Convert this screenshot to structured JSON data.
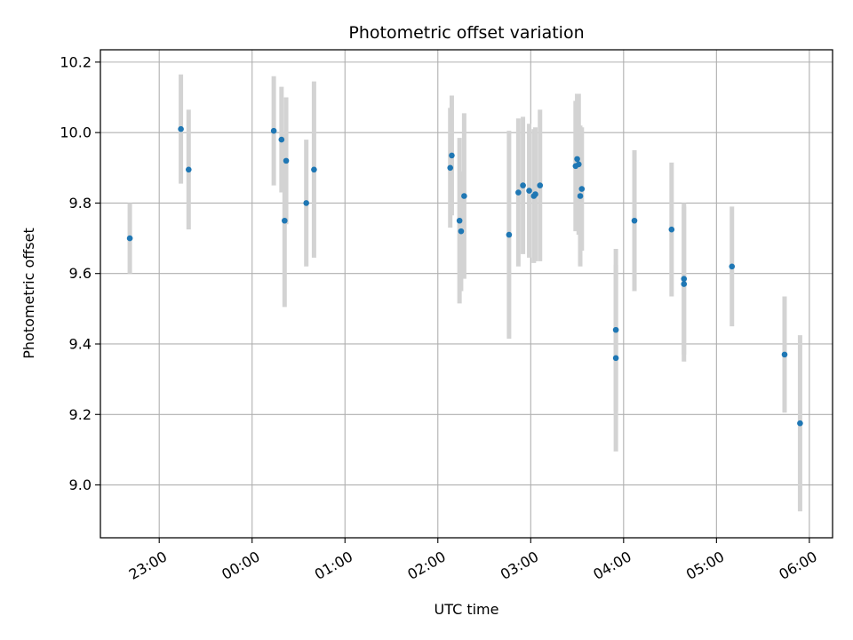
{
  "chart_data": {
    "type": "scatter",
    "title": "Photometric offset variation",
    "xlabel": "UTC time",
    "ylabel": "Photometric offset",
    "grid": true,
    "legend": "none",
    "x_unit": "UTC time (HH:MM, 22:00 to 06:00)",
    "xlim": [
      "22:22",
      "06:15"
    ],
    "ylim": [
      8.85,
      10.235
    ],
    "x_ticks": [
      "23:00",
      "00:00",
      "01:00",
      "02:00",
      "03:00",
      "04:00",
      "05:00",
      "06:00"
    ],
    "y_ticks": [
      9.0,
      9.2,
      9.4,
      9.6,
      9.8,
      10.0,
      10.2
    ],
    "y_tick_labels": [
      "9.0",
      "9.2",
      "9.4",
      "9.6",
      "9.8",
      "10.0",
      "10.2"
    ],
    "colors": {
      "point": "#1f77b4",
      "errorbar": "#d3d3d3",
      "grid": "#b0b0b0"
    },
    "points": [
      {
        "x": "22:41",
        "y": 9.7,
        "err": 0.1
      },
      {
        "x": "23:14",
        "y": 10.01,
        "err": 0.155
      },
      {
        "x": "23:19",
        "y": 9.895,
        "err": 0.17
      },
      {
        "x": "00:14",
        "y": 10.005,
        "err": 0.155
      },
      {
        "x": "00:19",
        "y": 9.98,
        "err": 0.15
      },
      {
        "x": "00:22",
        "y": 9.92,
        "err": 0.18
      },
      {
        "x": "00:21",
        "y": 9.75,
        "err": 0.245
      },
      {
        "x": "00:35",
        "y": 9.8,
        "err": 0.18
      },
      {
        "x": "00:40",
        "y": 9.895,
        "err": 0.25
      },
      {
        "x": "02:08",
        "y": 9.9,
        "err": 0.17
      },
      {
        "x": "02:09",
        "y": 9.935,
        "err": 0.17
      },
      {
        "x": "02:14",
        "y": 9.75,
        "err": 0.235
      },
      {
        "x": "02:15",
        "y": 9.72,
        "err": 0.17
      },
      {
        "x": "02:17",
        "y": 9.82,
        "err": 0.235
      },
      {
        "x": "02:46",
        "y": 9.71,
        "err": 0.295
      },
      {
        "x": "02:52",
        "y": 9.83,
        "err": 0.21
      },
      {
        "x": "02:55",
        "y": 9.85,
        "err": 0.195
      },
      {
        "x": "02:59",
        "y": 9.835,
        "err": 0.19
      },
      {
        "x": "03:02",
        "y": 9.82,
        "err": 0.19
      },
      {
        "x": "03:03",
        "y": 9.825,
        "err": 0.19
      },
      {
        "x": "03:06",
        "y": 9.85,
        "err": 0.215
      },
      {
        "x": "03:29",
        "y": 9.905,
        "err": 0.185
      },
      {
        "x": "03:30",
        "y": 9.925,
        "err": 0.185
      },
      {
        "x": "03:31",
        "y": 9.91,
        "err": 0.2
      },
      {
        "x": "03:32",
        "y": 9.82,
        "err": 0.2
      },
      {
        "x": "03:33",
        "y": 9.84,
        "err": 0.175
      },
      {
        "x": "03:55",
        "y": 9.44,
        "err": 0.23
      },
      {
        "x": "03:55",
        "y": 9.36,
        "err": 0.265
      },
      {
        "x": "04:07",
        "y": 9.75,
        "err": 0.2
      },
      {
        "x": "04:31",
        "y": 9.725,
        "err": 0.19
      },
      {
        "x": "04:39",
        "y": 9.585,
        "err": 0.215
      },
      {
        "x": "04:39",
        "y": 9.57,
        "err": 0.22
      },
      {
        "x": "05:10",
        "y": 9.62,
        "err": 0.17
      },
      {
        "x": "05:44",
        "y": 9.37,
        "err": 0.165
      },
      {
        "x": "05:54",
        "y": 9.175,
        "err": 0.25
      }
    ]
  }
}
